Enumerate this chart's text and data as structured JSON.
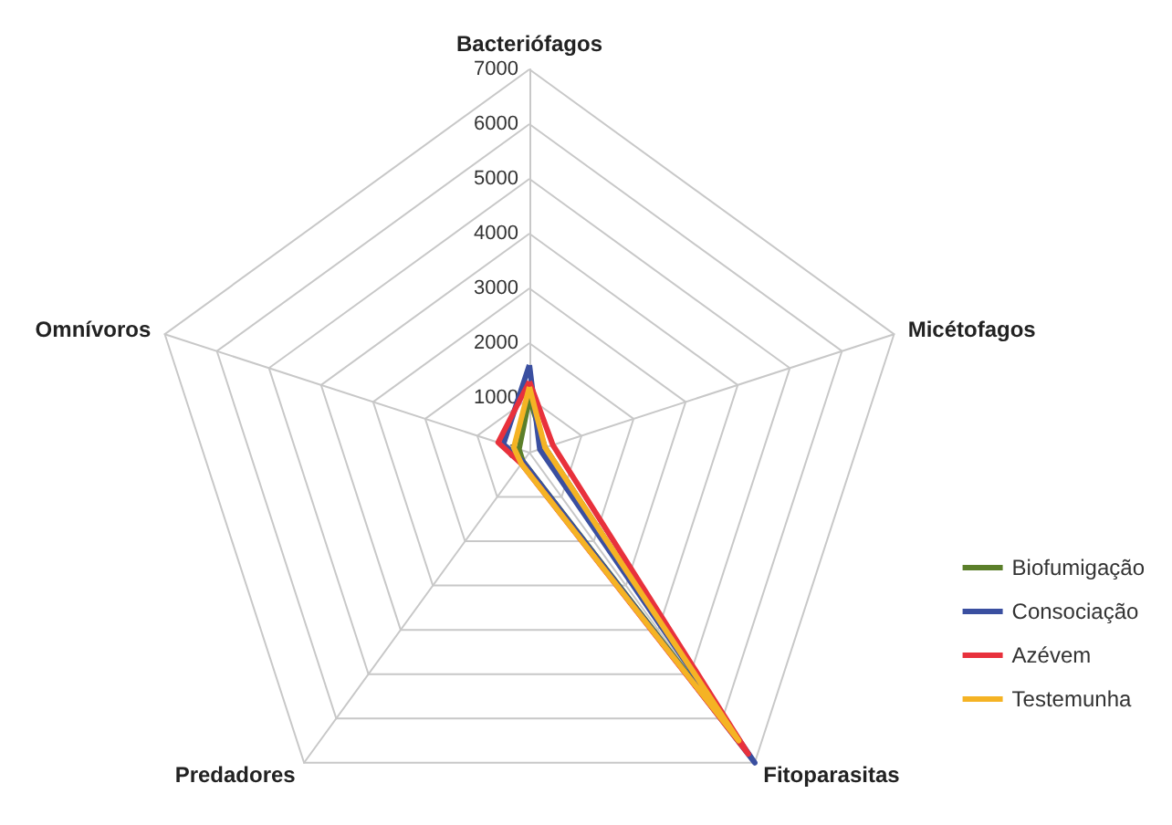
{
  "chart_data": {
    "type": "radar",
    "categories": [
      "Bacteriófagos",
      "Micétofagos",
      "Fitoparasitas",
      "Predadores",
      "Omnívoros"
    ],
    "ylim": [
      0,
      7000
    ],
    "yticks": [
      0,
      1000,
      2000,
      3000,
      4000,
      5000,
      6000,
      7000
    ],
    "grid": true,
    "legend": "right",
    "marker": "none",
    "line_style": "solid",
    "series": [
      {
        "name": "Biofumigação",
        "color": "#5b7f2a",
        "values": [
          1000,
          300,
          6400,
          200,
          200
        ]
      },
      {
        "name": "Consociação",
        "color": "#3a4fa0",
        "values": [
          1600,
          200,
          7000,
          200,
          500
        ]
      },
      {
        "name": "Azévem",
        "color": "#e8313c",
        "values": [
          1300,
          450,
          6800,
          250,
          600
        ]
      },
      {
        "name": "Testemunha",
        "color": "#f5b324",
        "values": [
          1200,
          300,
          6500,
          250,
          300
        ]
      }
    ]
  }
}
